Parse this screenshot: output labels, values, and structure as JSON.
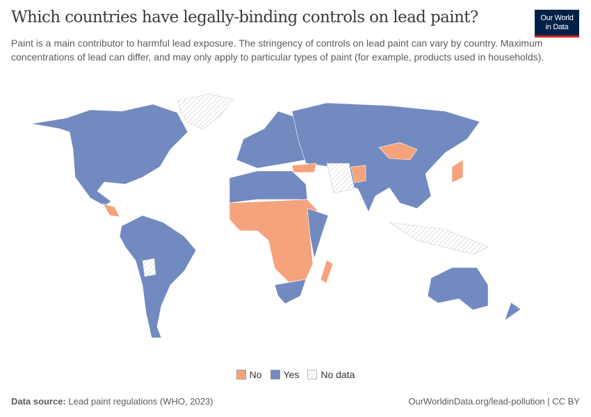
{
  "header": {
    "title": "Which countries have legally-binding controls on lead paint?",
    "subtitle": "Paint is a main contributor to harmful lead exposure. The stringency of controls on lead paint can vary by country. Maximum concentrations of lead can differ, and may only apply to particular types of paint (for example, products used in households)."
  },
  "logo": {
    "line1": "Our World",
    "line2": "in Data"
  },
  "map_data": {
    "type": "choropleth",
    "legend_placement": "bottom",
    "categories": [
      {
        "label": "No",
        "color": "#f4a37c"
      },
      {
        "label": "Yes",
        "color": "#728ac0"
      },
      {
        "label": "No data",
        "color": "hatched"
      }
    ]
  },
  "footer": {
    "source_label": "Data source:",
    "source": "Lead paint regulations (WHO, 2023)",
    "url": "OurWorldinData.org/lead-pollution | CC BY"
  }
}
